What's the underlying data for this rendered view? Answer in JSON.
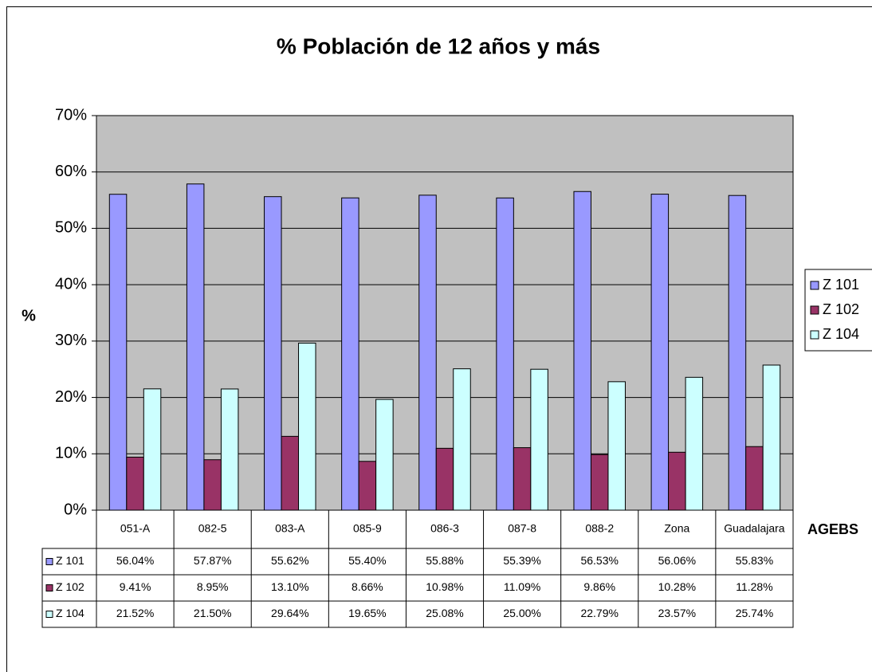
{
  "chart_data": {
    "type": "bar",
    "title": "% Población de 12 años y más",
    "y_label": "%",
    "x_label": "AGEBS",
    "categories": [
      "051-A",
      "082-5",
      "083-A",
      "085-9",
      "086-3",
      "087-8",
      "088-2",
      "Zona",
      "Guadalajara"
    ],
    "series": [
      {
        "name": "Z 101",
        "color": "#9999ff",
        "values": [
          56.04,
          57.87,
          55.62,
          55.4,
          55.88,
          55.39,
          56.53,
          56.06,
          55.83
        ],
        "value_labels": [
          "56.04%",
          "57.87%",
          "55.62%",
          "55.40%",
          "55.88%",
          "55.39%",
          "56.53%",
          "56.06%",
          "55.83%"
        ]
      },
      {
        "name": "Z 102",
        "color": "#993366",
        "values": [
          9.41,
          8.95,
          13.1,
          8.66,
          10.98,
          11.09,
          9.86,
          10.28,
          11.28
        ],
        "value_labels": [
          "9.41%",
          "8.95%",
          "13.10%",
          "8.66%",
          "10.98%",
          "11.09%",
          "9.86%",
          "10.28%",
          "11.28%"
        ]
      },
      {
        "name": "Z 104",
        "color": "#ccffff",
        "values": [
          21.52,
          21.5,
          29.64,
          19.65,
          25.08,
          25.0,
          22.79,
          23.57,
          25.74
        ],
        "value_labels": [
          "21.52%",
          "21.50%",
          "29.64%",
          "19.65%",
          "25.08%",
          "25.00%",
          "22.79%",
          "23.57%",
          "25.74%"
        ]
      }
    ],
    "ylim": [
      0,
      70
    ],
    "yticks": [
      {
        "value": 0,
        "label": "0%"
      },
      {
        "value": 10,
        "label": "10%"
      },
      {
        "value": 20,
        "label": "20%"
      },
      {
        "value": 30,
        "label": "30%"
      },
      {
        "value": 40,
        "label": "40%"
      },
      {
        "value": 50,
        "label": "50%"
      },
      {
        "value": 60,
        "label": "60%"
      },
      {
        "value": 70,
        "label": "70%"
      }
    ],
    "grid": true,
    "legend": "right",
    "plot_background": "#c0c0c0"
  }
}
